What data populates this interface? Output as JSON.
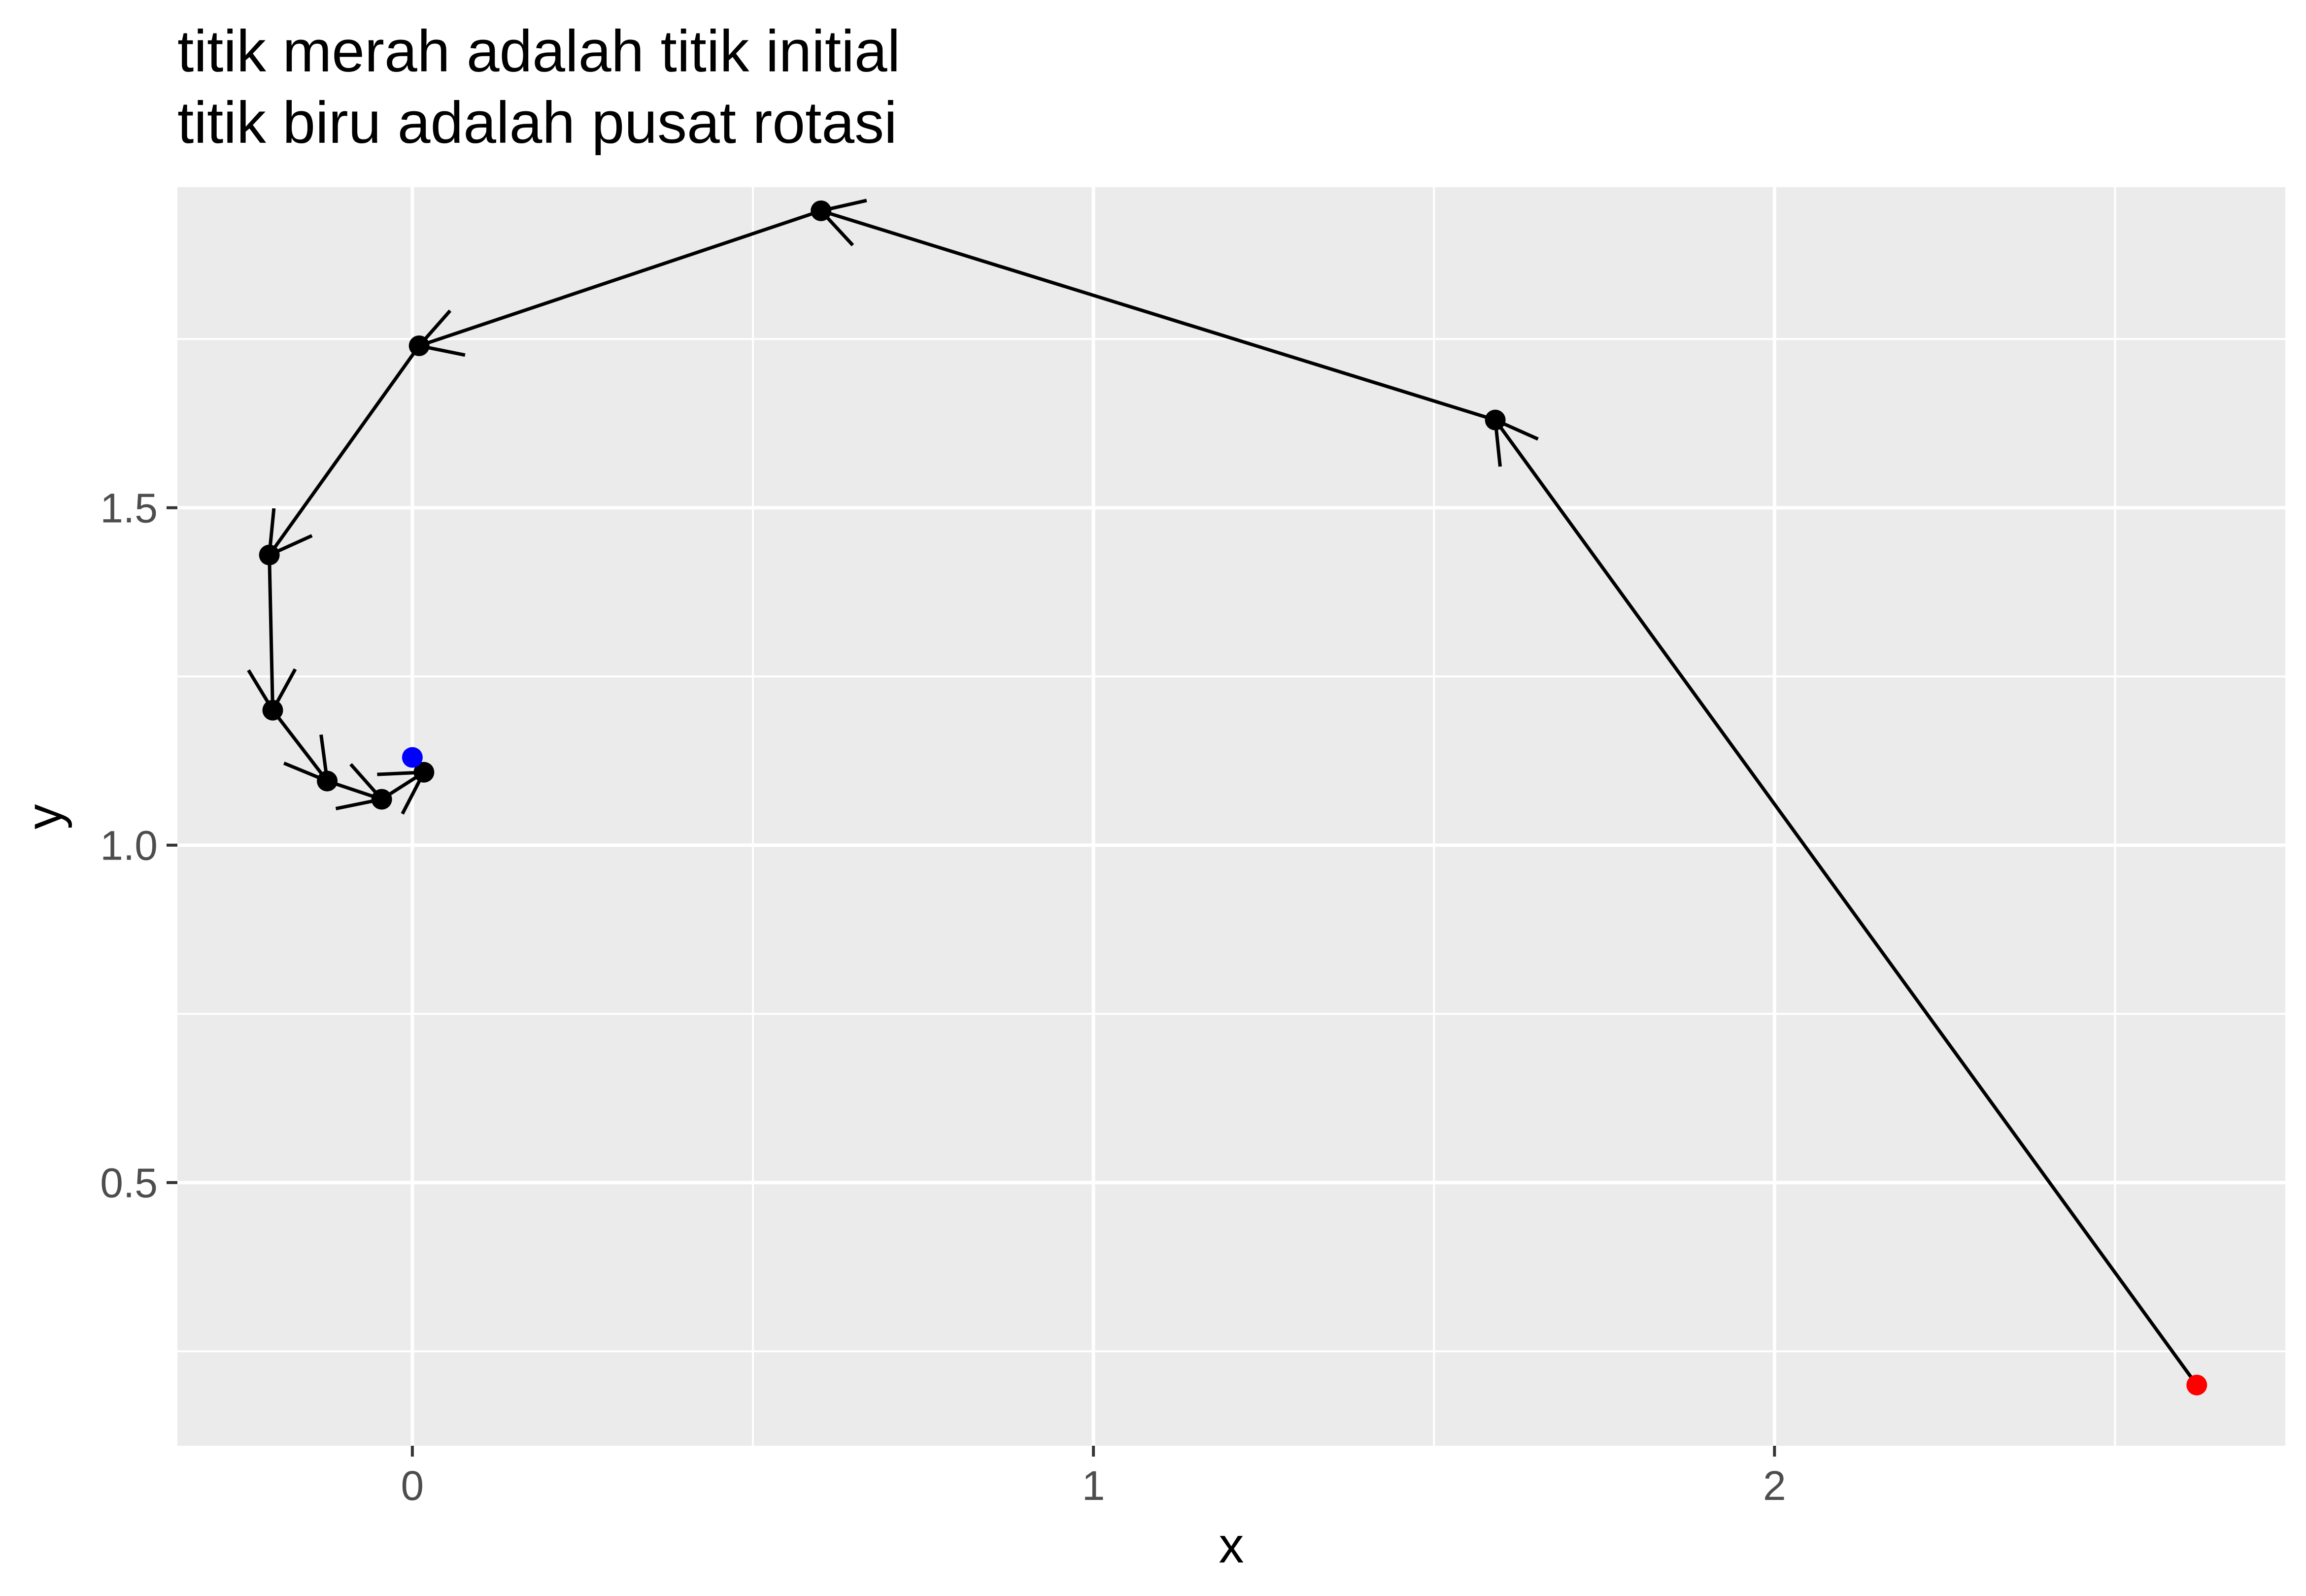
{
  "chart_data": {
    "type": "line",
    "title": [
      "titik merah adalah titik initial",
      "titik biru adalah pusat rotasi"
    ],
    "xlabel": "x",
    "ylabel": "y",
    "xlim": [
      -0.345,
      2.75
    ],
    "ylim": [
      0.11,
      1.975
    ],
    "x_major_ticks": [
      0,
      1,
      2
    ],
    "x_minor_ticks": [
      0.5,
      1.5,
      2.5
    ],
    "y_major_ticks": [
      0.5,
      1.0,
      1.5
    ],
    "y_minor_ticks": [
      0.25,
      0.75,
      1.25,
      1.75
    ],
    "x_tick_labels": [
      "0",
      "1",
      "2"
    ],
    "y_tick_labels": [
      "0.5",
      "1.0",
      "1.5"
    ],
    "grid": true,
    "series": [
      {
        "name": "path",
        "color": "#000000",
        "arrows": true,
        "points": [
          {
            "x": 2.62,
            "y": 0.2
          },
          {
            "x": 1.59,
            "y": 1.63
          },
          {
            "x": 0.6,
            "y": 1.94
          },
          {
            "x": 0.01,
            "y": 1.74
          },
          {
            "x": -0.21,
            "y": 1.43
          },
          {
            "x": -0.205,
            "y": 1.2
          },
          {
            "x": -0.125,
            "y": 1.095
          },
          {
            "x": -0.045,
            "y": 1.068
          },
          {
            "x": 0.017,
            "y": 1.108
          }
        ]
      }
    ],
    "initial_point": {
      "x": 2.62,
      "y": 0.2,
      "color": "#ff0000"
    },
    "rotation_center": {
      "x": 0.0,
      "y": 1.13,
      "color": "#0000ff"
    },
    "panel_background": "#ebebeb",
    "grid_color": "#ffffff"
  }
}
